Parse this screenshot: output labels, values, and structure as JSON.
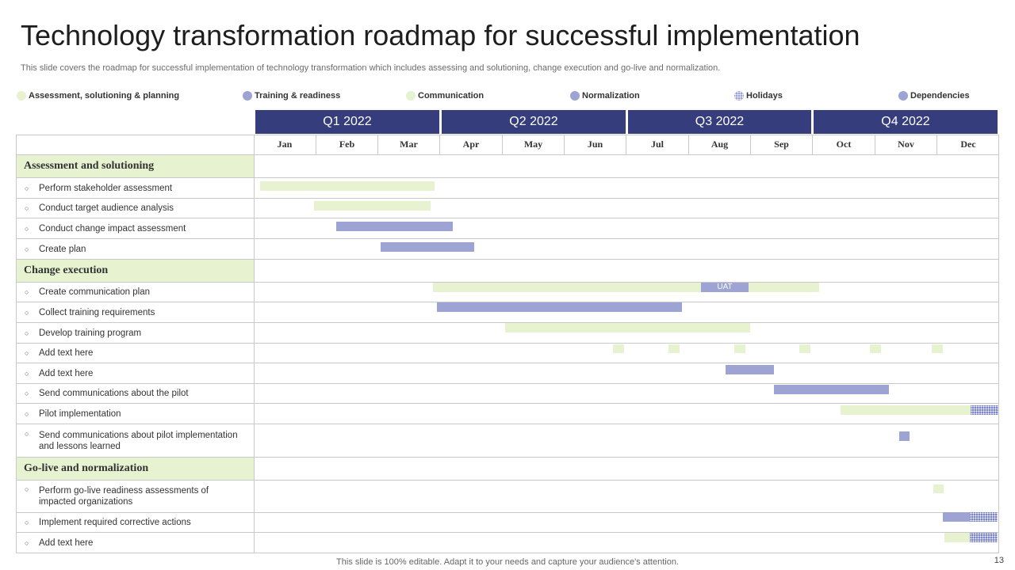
{
  "title": "Technology transformation roadmap for successful implementation",
  "subtitle": "This slide covers the roadmap for successful implementation of technology transformation which includes assessing and solutioning, change execution and go-live and normalization.",
  "legend": [
    {
      "label": "Assessment, solutioning & planning",
      "style": "green"
    },
    {
      "label": "Training & readiness",
      "style": "blue"
    },
    {
      "label": "Communication",
      "style": "green"
    },
    {
      "label": "Normalization",
      "style": "blue"
    },
    {
      "label": "Holidays",
      "style": "hatch"
    },
    {
      "label": "Dependencies",
      "style": "blue"
    }
  ],
  "quarters": [
    "Q1 2022",
    "Q2 2022",
    "Q3 2022",
    "Q4 2022"
  ],
  "months": [
    "Jan",
    "Feb",
    "Mar",
    "Apr",
    "May",
    "Jun",
    "Jul",
    "Aug",
    "Sep",
    "Oct",
    "Nov",
    "Dec"
  ],
  "sections": [
    {
      "label": "Assessment and solutioning"
    },
    {
      "label": "Change execution"
    },
    {
      "label": "Go-live and normalization"
    }
  ],
  "tasks": [
    {
      "label": "Perform stakeholder assessment"
    },
    {
      "label": "Conduct target audience analysis"
    },
    {
      "label": "Conduct change impact assessment"
    },
    {
      "label": "Create plan"
    },
    {
      "label": "Create communication plan"
    },
    {
      "label": "Collect training requirements"
    },
    {
      "label": "Develop training program"
    },
    {
      "label": "Add text here"
    },
    {
      "label": "Add text here"
    },
    {
      "label": "Send communications about the pilot"
    },
    {
      "label": "Pilot implementation"
    },
    {
      "label": "Send communications about pilot implementation and lessons learned"
    },
    {
      "label": "Perform go-live readiness assessments of impacted organizations"
    },
    {
      "label": "Implement required corrective actions"
    },
    {
      "label": "Add text here"
    }
  ],
  "uat_label": "UAT",
  "colors": {
    "header": "#363d7c",
    "green": "#e6f2d0",
    "blue": "#9da4d4",
    "hatch": "#7c85c6"
  },
  "footer": "This slide is 100% editable. Adapt it to your needs and capture your audience's attention.",
  "page_number": "13"
}
